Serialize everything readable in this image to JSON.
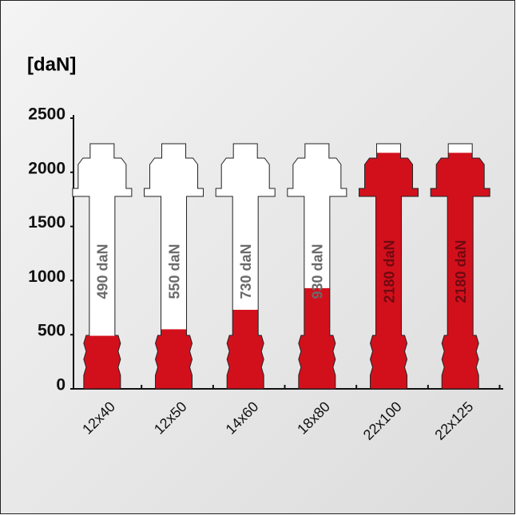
{
  "chart_data": {
    "type": "bar",
    "y_label": "[daN]",
    "categories": [
      "12x40",
      "12x50",
      "14x60",
      "18x80",
      "22x100",
      "22x125"
    ],
    "values": [
      490,
      550,
      730,
      930,
      2180,
      2180
    ],
    "value_labels": [
      "490 daN",
      "550 daN",
      "730 daN",
      "930 daN",
      "2180 daN",
      "2180 daN"
    ],
    "color": "#d2101c",
    "ylim": [
      0,
      2500
    ],
    "yticks": [
      0,
      500,
      1000,
      1500,
      2000,
      2500
    ]
  }
}
